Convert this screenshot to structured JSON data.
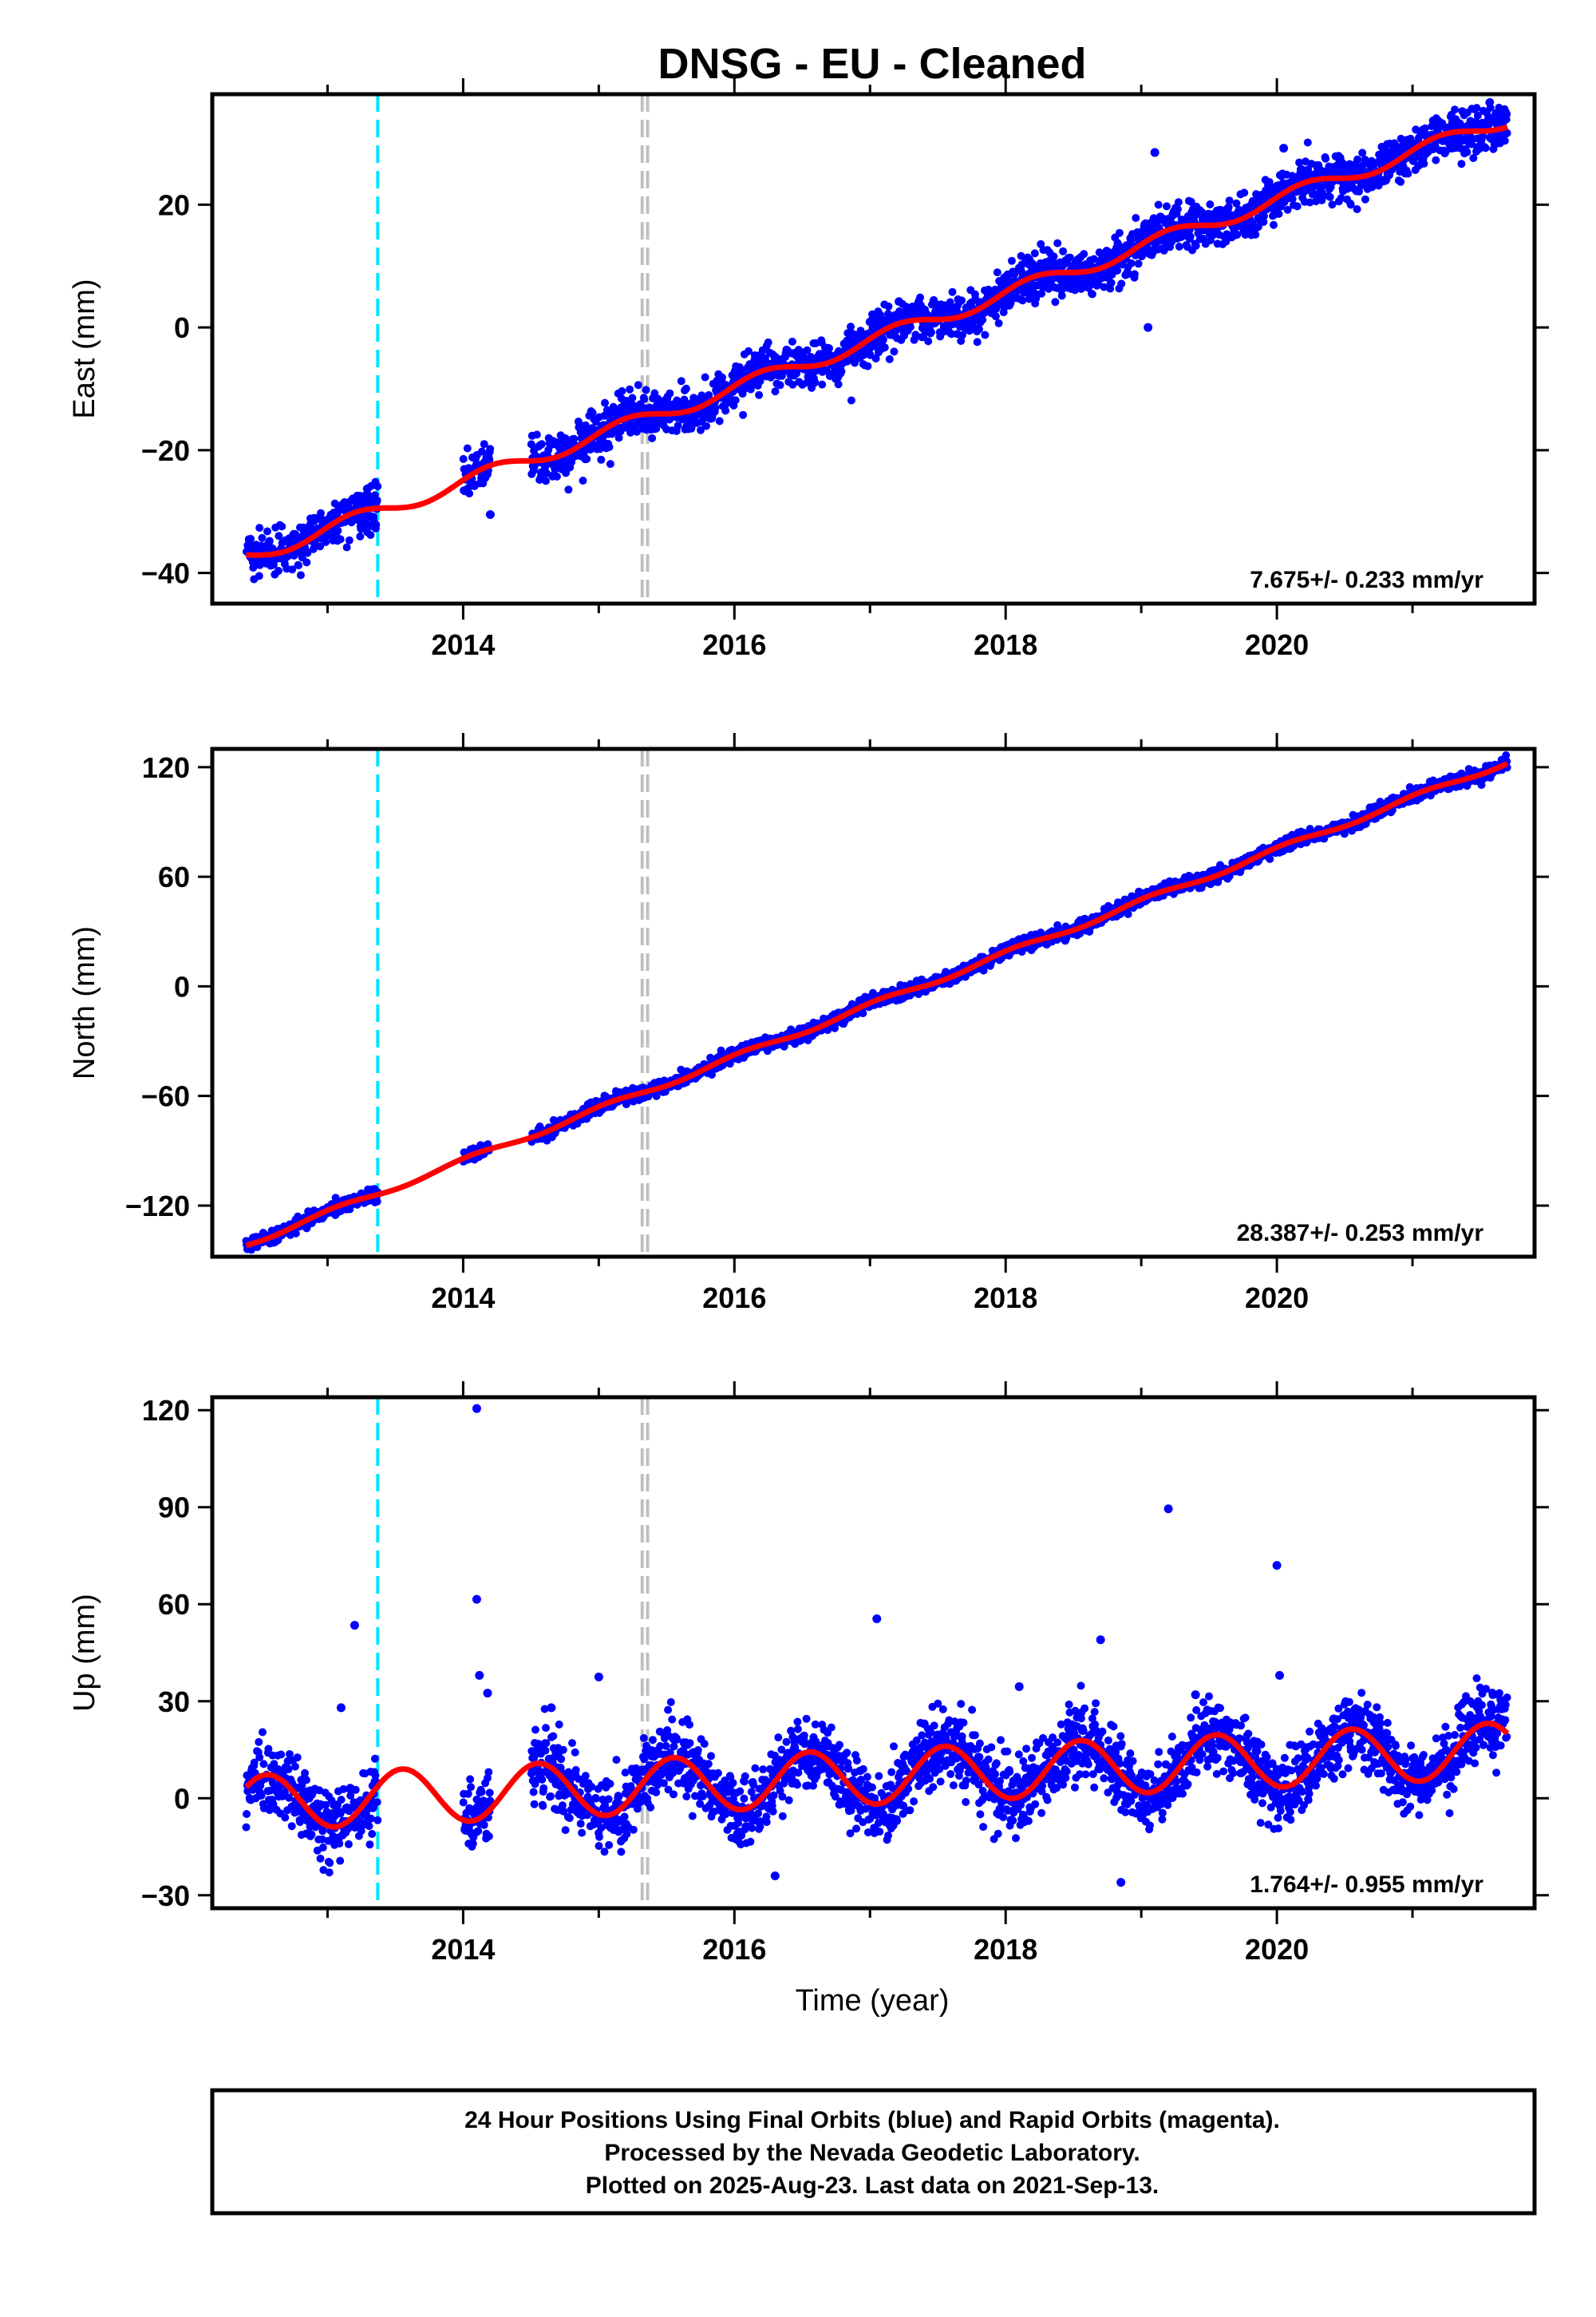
{
  "title": "DNSG  - EU - Cleaned",
  "xlabel": "Time (year)",
  "xticks": [
    "2014",
    "2016",
    "2018",
    "2020"
  ],
  "footer": {
    "line1": "24 Hour Positions Using Final Orbits (blue) and Rapid Orbits (magenta).",
    "line2": "Processed by the Nevada Geodetic Laboratory.",
    "line3": "Plotted on 2025-Aug-23. Last data on 2021-Sep-13."
  },
  "colors": {
    "points": "#0000ff",
    "fit": "#ff0000",
    "event_cyan": "#00e5ff",
    "event_gray": "#c0c0c0"
  },
  "chart_data": [
    {
      "type": "scatter",
      "ylabel": "East (mm)",
      "rate_text": "7.675+/- 0.233 mm/yr",
      "xlim": [
        2012.15,
        2021.9
      ],
      "ylim": [
        -45,
        38
      ],
      "yticks": [
        -40,
        -20,
        0,
        20
      ],
      "ytick_labels": [
        "−40",
        "−20",
        "0",
        "20"
      ],
      "trend": {
        "x0": 2012.4,
        "y0": -37.5,
        "slope": 7.675
      },
      "season": {
        "amp": 1.2,
        "phase": 0.3
      },
      "noise": 1.8,
      "events": {
        "cyan": [
          2013.37
        ],
        "gray": [
          2015.32,
          2015.36
        ]
      },
      "gaps": [
        [
          2013.37,
          2014.0
        ],
        [
          2014.2,
          2014.5
        ]
      ],
      "data_range": [
        2012.4,
        2021.7
      ],
      "outliers": [
        [
          2019.1,
          28.5
        ],
        [
          2020.05,
          29.2
        ],
        [
          2019.05,
          0.0
        ],
        [
          2014.2,
          -30.5
        ]
      ],
      "series": [
        {
          "name": "Final Orbits (blue)"
        }
      ]
    },
    {
      "type": "scatter",
      "ylabel": "North (mm)",
      "rate_text": "28.387+/- 0.253 mm/yr",
      "xlim": [
        2012.15,
        2021.9
      ],
      "ylim": [
        -148,
        130
      ],
      "yticks": [
        -120,
        -60,
        0,
        60,
        120
      ],
      "ytick_labels": [
        "−120",
        "−60",
        "0",
        "60",
        "120"
      ],
      "trend": {
        "x0": 2012.4,
        "y0": -141,
        "slope": 28.387
      },
      "season": {
        "amp": 1.5,
        "phase": 1.2
      },
      "noise": 1.8,
      "events": {
        "cyan": [
          2013.37
        ],
        "gray": [
          2015.32,
          2015.36
        ]
      },
      "gaps": [
        [
          2013.37,
          2014.0
        ],
        [
          2014.2,
          2014.5
        ]
      ],
      "data_range": [
        2012.4,
        2021.7
      ],
      "outliers": [],
      "series": [
        {
          "name": "Final Orbits (blue)"
        }
      ]
    },
    {
      "type": "scatter",
      "ylabel": "Up (mm)",
      "rate_text": "1.764+/- 0.955 mm/yr",
      "xlim": [
        2012.15,
        2021.9
      ],
      "ylim": [
        -34,
        124
      ],
      "yticks": [
        -30,
        0,
        30,
        60,
        90,
        120
      ],
      "ytick_labels": [
        "−30",
        "0",
        "30",
        "60",
        "90",
        "120"
      ],
      "trend": {
        "x0": 2012.4,
        "y0": -1.5,
        "slope": 1.764
      },
      "season": {
        "amp": 8.5,
        "phase": -1.9
      },
      "noise": 5.5,
      "events": {
        "cyan": [
          2013.37
        ],
        "gray": [
          2015.32,
          2015.36
        ]
      },
      "gaps": [
        [
          2013.37,
          2014.0
        ],
        [
          2014.2,
          2014.5
        ]
      ],
      "data_range": [
        2012.4,
        2021.7
      ],
      "outliers": [
        [
          2014.1,
          120.5
        ],
        [
          2014.1,
          61.5
        ],
        [
          2014.12,
          38
        ],
        [
          2014.18,
          32.5
        ],
        [
          2013.2,
          53.5
        ],
        [
          2013.1,
          28
        ],
        [
          2014.65,
          28
        ],
        [
          2015.0,
          37.5
        ],
        [
          2017.05,
          55.5
        ],
        [
          2017.4,
          23
        ],
        [
          2018.1,
          34.5
        ],
        [
          2018.7,
          49
        ],
        [
          2019.2,
          89.5
        ],
        [
          2019.4,
          32
        ],
        [
          2020.0,
          72
        ],
        [
          2020.02,
          38
        ],
        [
          2016.3,
          -24
        ],
        [
          2018.85,
          -26
        ]
      ],
      "series": [
        {
          "name": "Final Orbits (blue)"
        }
      ]
    }
  ]
}
